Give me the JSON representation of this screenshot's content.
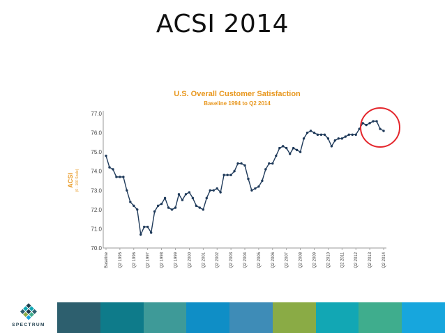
{
  "slide": {
    "title": "ACSI 2014"
  },
  "chart_data": {
    "type": "line",
    "title": "U.S. Overall Customer Satisfaction",
    "subtitle": "Baseline 1994 to Q2 2014",
    "ylabel": "ACSI",
    "ylabel_sub": "(0 - 100 Scale)",
    "ylim": [
      70.0,
      77.0
    ],
    "yticks": [
      "77.0",
      "76.0",
      "75.0",
      "74.0",
      "73.0",
      "72.0",
      "71.0",
      "70.0"
    ],
    "xticks": [
      "Baseline",
      "Q2 1995",
      "Q2 1996",
      "Q2 1997",
      "Q2 1998",
      "Q2 1999",
      "Q2 2000",
      "Q2 2001",
      "Q2 2002",
      "Q2 2003",
      "Q2 2004",
      "Q2 2005",
      "Q2 2006",
      "Q2 2007",
      "Q2 2008",
      "Q2 2009",
      "Q2 2010",
      "Q2 2011",
      "Q2 2012",
      "Q2 2013",
      "Q2 2014"
    ],
    "grid": false,
    "line_color": "#1f3a5a",
    "title_color": "#e8971e",
    "highlight_color": "#e4262c",
    "series": [
      {
        "values": [
          74.8,
          74.2,
          74.1,
          73.7,
          73.7,
          73.7,
          73.0,
          72.4,
          72.2,
          72.0,
          70.7,
          71.1,
          71.1,
          70.8,
          71.9,
          72.2,
          72.3,
          72.6,
          72.1,
          72.0,
          72.1,
          72.8,
          72.5,
          72.8,
          72.9,
          72.6,
          72.2,
          72.1,
          72.0,
          72.6,
          73.0,
          73.0,
          73.1,
          72.9,
          73.8,
          73.8,
          73.8,
          74.0,
          74.4,
          74.4,
          74.3,
          73.6,
          73.0,
          73.1,
          73.2,
          73.5,
          74.1,
          74.4,
          74.4,
          74.8,
          75.2,
          75.3,
          75.2,
          74.9,
          75.2,
          75.1,
          75.0,
          75.7,
          76.0,
          76.1,
          76.0,
          75.9,
          75.9,
          75.9,
          75.7,
          75.3,
          75.6,
          75.7,
          75.7,
          75.8,
          75.9,
          75.9,
          75.9,
          76.2,
          76.5,
          76.4,
          76.5,
          76.6,
          76.6,
          76.2,
          76.1
        ]
      }
    ],
    "highlight": {
      "shape": "circle",
      "target": "last-points"
    }
  },
  "footer": {
    "logo_text": "SPECTRUM",
    "bar_colors": [
      "#2d5f6e",
      "#0e7b8a",
      "#3e9a98",
      "#0f8ec6",
      "#3e8cb7",
      "#8aab45",
      "#12a7b4",
      "#3fad8d",
      "#17a6dd"
    ]
  }
}
